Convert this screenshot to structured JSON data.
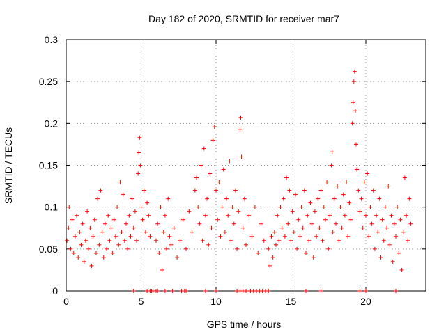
{
  "chart_data": {
    "type": "scatter",
    "title": "Day 182 of 2020, SRMTID for receiver mar7",
    "xlabel": "GPS time / hours",
    "ylabel": "SRMTID / TECUs",
    "xlim": [
      0,
      24
    ],
    "ylim": [
      0,
      0.3
    ],
    "grid": true,
    "legend": "none",
    "marker": "plus",
    "x_ticks": [
      {
        "value": 0,
        "label": "0"
      },
      {
        "value": 5,
        "label": "5"
      },
      {
        "value": 10,
        "label": "10"
      },
      {
        "value": 15,
        "label": "15"
      },
      {
        "value": 20,
        "label": "20"
      }
    ],
    "y_ticks": [
      {
        "value": 0,
        "label": "0"
      },
      {
        "value": 0.05,
        "label": "0.05"
      },
      {
        "value": 0.1,
        "label": "0.1"
      },
      {
        "value": 0.15,
        "label": "0.15"
      },
      {
        "value": 0.2,
        "label": "0.2"
      },
      {
        "value": 0.25,
        "label": "0.25"
      },
      {
        "value": 0.3,
        "label": "0.3"
      }
    ],
    "series": [
      {
        "name": "SRMTID",
        "color": "#ff0000",
        "points": [
          [
            0.05,
            0.06
          ],
          [
            0.15,
            0.075
          ],
          [
            0.2,
            0.1
          ],
          [
            0.3,
            0.05
          ],
          [
            0.4,
            0.085
          ],
          [
            0.5,
            0.045
          ],
          [
            0.6,
            0.065
          ],
          [
            0.7,
            0.09
          ],
          [
            0.8,
            0.04
          ],
          [
            0.9,
            0.07
          ],
          [
            1.0,
            0.055
          ],
          [
            1.1,
            0.08
          ],
          [
            1.2,
            0.035
          ],
          [
            1.3,
            0.06
          ],
          [
            1.4,
            0.095
          ],
          [
            1.5,
            0.05
          ],
          [
            1.6,
            0.075
          ],
          [
            1.7,
            0.03
          ],
          [
            1.8,
            0.065
          ],
          [
            1.9,
            0.085
          ],
          [
            2.0,
            0.045
          ],
          [
            2.1,
            0.11
          ],
          [
            2.2,
            0.055
          ],
          [
            2.3,
            0.12
          ],
          [
            2.4,
            0.07
          ],
          [
            2.5,
            0.04
          ],
          [
            2.6,
            0.08
          ],
          [
            2.7,
            0.05
          ],
          [
            2.8,
            0.09
          ],
          [
            2.9,
            0.06
          ],
          [
            3.0,
            0.075
          ],
          [
            3.1,
            0.045
          ],
          [
            3.2,
            0.085
          ],
          [
            3.3,
            0.065
          ],
          [
            3.4,
            0.1
          ],
          [
            3.5,
            0.055
          ],
          [
            3.6,
            0.13
          ],
          [
            3.7,
            0.07
          ],
          [
            3.8,
            0.115
          ],
          [
            3.9,
            0.06
          ],
          [
            4.0,
            0.08
          ],
          [
            4.1,
            0.05
          ],
          [
            4.2,
            0.09
          ],
          [
            4.3,
            0.065
          ],
          [
            4.4,
            0.11
          ],
          [
            4.5,
            0.075
          ],
          [
            4.6,
            0.095
          ],
          [
            4.7,
            0.06
          ],
          [
            4.8,
            0.14
          ],
          [
            4.85,
            0.165
          ],
          [
            4.9,
            0.183
          ],
          [
            4.95,
            0.15
          ],
          [
            5.0,
            0.1
          ],
          [
            5.1,
            0.085
          ],
          [
            5.2,
            0.12
          ],
          [
            5.3,
            0.07
          ],
          [
            5.4,
            0.105
          ],
          [
            5.5,
            0.09
          ],
          [
            5.6,
            0.065
          ],
          [
            6.0,
            0.06
          ],
          [
            6.1,
            0.08
          ],
          [
            6.2,
            0.045
          ],
          [
            6.3,
            0.1
          ],
          [
            6.4,
            0.025
          ],
          [
            6.5,
            0.07
          ],
          [
            6.6,
            0.09
          ],
          [
            6.7,
            0.05
          ],
          [
            6.8,
            0.11
          ],
          [
            6.9,
            0.065
          ],
          [
            7.0,
            0.055
          ],
          [
            7.2,
            0.075
          ],
          [
            7.4,
            0.04
          ],
          [
            7.6,
            0.06
          ],
          [
            7.8,
            0.085
          ],
          [
            8.0,
            0.05
          ],
          [
            8.2,
            0.095
          ],
          [
            8.4,
            0.07
          ],
          [
            8.6,
            0.12
          ],
          [
            8.7,
            0.135
          ],
          [
            8.8,
            0.1
          ],
          [
            8.9,
            0.08
          ],
          [
            9.0,
            0.15
          ],
          [
            9.1,
            0.06
          ],
          [
            9.2,
            0.17
          ],
          [
            9.3,
            0.09
          ],
          [
            9.4,
            0.11
          ],
          [
            9.5,
            0.055
          ],
          [
            9.6,
            0.14
          ],
          [
            9.7,
            0.075
          ],
          [
            9.8,
            0.18
          ],
          [
            9.9,
            0.196
          ],
          [
            10.0,
            0.12
          ],
          [
            10.1,
            0.085
          ],
          [
            10.2,
            0.13
          ],
          [
            10.3,
            0.065
          ],
          [
            10.4,
            0.1
          ],
          [
            10.5,
            0.145
          ],
          [
            10.6,
            0.07
          ],
          [
            10.7,
            0.11
          ],
          [
            10.8,
            0.09
          ],
          [
            10.9,
            0.155
          ],
          [
            11.0,
            0.06
          ],
          [
            11.1,
            0.1
          ],
          [
            11.2,
            0.08
          ],
          [
            11.3,
            0.12
          ],
          [
            11.4,
            0.05
          ],
          [
            11.5,
            0.095
          ],
          [
            11.6,
            0.193
          ],
          [
            11.65,
            0.207
          ],
          [
            11.7,
            0.16
          ],
          [
            11.8,
            0.075
          ],
          [
            11.9,
            0.11
          ],
          [
            12.0,
            0.055
          ],
          [
            12.2,
            0.09
          ],
          [
            12.4,
            0.065
          ],
          [
            12.6,
            0.1
          ],
          [
            12.8,
            0.045
          ],
          [
            13.0,
            0.08
          ],
          [
            13.2,
            0.06
          ],
          [
            13.5,
            0.05
          ],
          [
            13.6,
            0.03
          ],
          [
            13.7,
            0.065
          ],
          [
            13.8,
            0.04
          ],
          [
            13.9,
            0.07
          ],
          [
            14.0,
            0.055
          ],
          [
            14.1,
            0.09
          ],
          [
            14.2,
            0.06
          ],
          [
            14.3,
            0.1
          ],
          [
            14.4,
            0.075
          ],
          [
            14.5,
            0.11
          ],
          [
            14.6,
            0.065
          ],
          [
            14.7,
            0.135
          ],
          [
            14.8,
            0.08
          ],
          [
            14.9,
            0.12
          ],
          [
            15.0,
            0.06
          ],
          [
            15.1,
            0.095
          ],
          [
            15.2,
            0.07
          ],
          [
            15.3,
            0.115
          ],
          [
            15.4,
            0.05
          ],
          [
            15.5,
            0.085
          ],
          [
            15.6,
            0.065
          ],
          [
            15.7,
            0.1
          ],
          [
            15.8,
            0.075
          ],
          [
            15.9,
            0.12
          ],
          [
            16.0,
            0.045
          ],
          [
            16.1,
            0.09
          ],
          [
            16.2,
            0.06
          ],
          [
            16.3,
            0.105
          ],
          [
            16.4,
            0.08
          ],
          [
            16.5,
            0.04
          ],
          [
            16.6,
            0.095
          ],
          [
            16.7,
            0.065
          ],
          [
            16.8,
            0.11
          ],
          [
            16.9,
            0.075
          ],
          [
            17.0,
            0.12
          ],
          [
            17.1,
            0.06
          ],
          [
            17.2,
            0.1
          ],
          [
            17.3,
            0.085
          ],
          [
            17.4,
            0.13
          ],
          [
            17.5,
            0.05
          ],
          [
            17.6,
            0.09
          ],
          [
            17.7,
            0.15
          ],
          [
            17.75,
            0.166
          ],
          [
            17.8,
            0.07
          ],
          [
            17.9,
            0.11
          ],
          [
            18.0,
            0.08
          ],
          [
            18.1,
            0.125
          ],
          [
            18.2,
            0.06
          ],
          [
            18.3,
            0.1
          ],
          [
            18.4,
            0.075
          ],
          [
            18.5,
            0.115
          ],
          [
            18.6,
            0.09
          ],
          [
            18.7,
            0.13
          ],
          [
            18.8,
            0.065
          ],
          [
            18.9,
            0.105
          ],
          [
            19.0,
            0.085
          ],
          [
            19.1,
            0.2
          ],
          [
            19.15,
            0.225
          ],
          [
            19.2,
            0.25
          ],
          [
            19.25,
            0.262
          ],
          [
            19.3,
            0.215
          ],
          [
            19.35,
            0.175
          ],
          [
            19.4,
            0.145
          ],
          [
            19.5,
            0.12
          ],
          [
            19.6,
            0.095
          ],
          [
            19.7,
            0.11
          ],
          [
            19.8,
            0.075
          ],
          [
            19.9,
            0.13
          ],
          [
            20.0,
            0.09
          ],
          [
            20.1,
            0.14
          ],
          [
            20.2,
            0.065
          ],
          [
            20.3,
            0.1
          ],
          [
            20.4,
            0.08
          ],
          [
            20.5,
            0.12
          ],
          [
            20.6,
            0.05
          ],
          [
            20.7,
            0.09
          ],
          [
            20.8,
            0.07
          ],
          [
            20.9,
            0.11
          ],
          [
            21.0,
            0.04
          ],
          [
            21.1,
            0.085
          ],
          [
            21.2,
            0.06
          ],
          [
            21.3,
            0.1
          ],
          [
            21.4,
            0.075
          ],
          [
            21.5,
            0.125
          ],
          [
            21.6,
            0.055
          ],
          [
            21.7,
            0.09
          ],
          [
            21.8,
            0.035
          ],
          [
            21.9,
            0.08
          ],
          [
            22.0,
            0.065
          ],
          [
            22.1,
            0.1
          ],
          [
            22.2,
            0.045
          ],
          [
            22.3,
            0.085
          ],
          [
            22.4,
            0.025
          ],
          [
            22.5,
            0.07
          ],
          [
            22.6,
            0.135
          ],
          [
            22.7,
            0.09
          ],
          [
            22.8,
            0.06
          ],
          [
            22.9,
            0.11
          ],
          [
            23.0,
            0.08
          ]
        ]
      }
    ],
    "zero_points_x": [
      4.5,
      5.4,
      5.6,
      5.7,
      5.8,
      6.0,
      6.1,
      6.6,
      7.1,
      7.7,
      7.9,
      8.0,
      9.3,
      10.0,
      11.4,
      11.6,
      11.8,
      12.0,
      12.3,
      12.5,
      12.7,
      12.9,
      13.1,
      13.3,
      13.5,
      16.0,
      17.0,
      19.6,
      20.0,
      22.0
    ]
  }
}
